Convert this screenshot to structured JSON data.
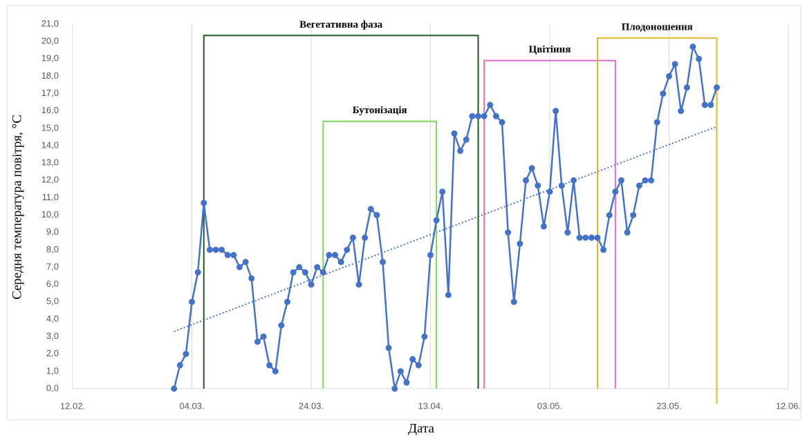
{
  "chart_data": {
    "type": "line",
    "xlabel": "Дата",
    "ylabel": "Середня температура повітря, °С",
    "x": [
      "01.03.",
      "02.03.",
      "03.03.",
      "04.03.",
      "05.03.",
      "06.03.",
      "07.03.",
      "08.03.",
      "09.03.",
      "10.03.",
      "11.03.",
      "12.03.",
      "13.03.",
      "14.03.",
      "15.03.",
      "16.03.",
      "17.03.",
      "18.03.",
      "19.03.",
      "20.03.",
      "21.03.",
      "22.03.",
      "23.03.",
      "24.03.",
      "25.03.",
      "26.03.",
      "27.03.",
      "28.03.",
      "29.03.",
      "30.03.",
      "31.03.",
      "01.04.",
      "02.04.",
      "03.04.",
      "04.04.",
      "05.04.",
      "06.04.",
      "07.04.",
      "08.04.",
      "09.04.",
      "10.04.",
      "11.04.",
      "12.04.",
      "13.04.",
      "14.04.",
      "15.04.",
      "16.04.",
      "17.04.",
      "18.04.",
      "19.04.",
      "20.04.",
      "21.04.",
      "22.04.",
      "23.04.",
      "24.04.",
      "25.04.",
      "26.04.",
      "27.04.",
      "28.04.",
      "29.04.",
      "30.04.",
      "01.05.",
      "02.05.",
      "03.05.",
      "04.05.",
      "05.05.",
      "06.05.",
      "07.05.",
      "08.05.",
      "09.05.",
      "10.05.",
      "11.05.",
      "12.05.",
      "13.05.",
      "14.05.",
      "15.05.",
      "16.05.",
      "17.05.",
      "18.05.",
      "19.05.",
      "20.05.",
      "21.05.",
      "22.05.",
      "23.05.",
      "24.05.",
      "25.05.",
      "26.05.",
      "27.05.",
      "28.05.",
      "29.05.",
      "30.05.",
      "31.05."
    ],
    "series": [
      {
        "color": "#4472c4",
        "values": [
          0.0,
          1.35,
          2.0,
          5.0,
          6.7,
          10.7,
          8.0,
          8.0,
          8.0,
          7.7,
          7.7,
          7.0,
          7.3,
          6.35,
          2.7,
          3.0,
          1.35,
          1.0,
          3.65,
          5.0,
          6.7,
          7.0,
          6.7,
          6.0,
          7.0,
          6.7,
          7.7,
          7.7,
          7.3,
          8.0,
          8.7,
          6.0,
          8.7,
          10.35,
          10.0,
          7.3,
          2.35,
          0.0,
          1.0,
          0.35,
          1.7,
          1.35,
          3.0,
          7.7,
          9.7,
          11.35,
          5.4,
          14.7,
          13.7,
          14.35,
          15.7,
          15.7,
          15.7,
          16.35,
          15.7,
          15.35,
          9.0,
          5.0,
          8.35,
          12.0,
          12.7,
          11.7,
          9.35,
          11.35,
          16.0,
          11.7,
          9.0,
          12.0,
          8.7,
          8.7,
          8.7,
          8.7,
          8.0,
          10.0,
          11.35,
          12.0,
          9.0,
          10.0,
          11.7,
          12.0,
          12.0,
          15.35,
          17.0,
          18.0,
          18.7,
          16.0,
          17.35,
          19.7,
          19.0,
          16.35,
          16.35,
          17.35
        ]
      }
    ],
    "trend": {
      "color": "#4472c4",
      "x": [
        "01.03.",
        "31.05."
      ],
      "values": [
        3.3,
        15.1
      ]
    },
    "annotations": [
      {
        "label": "Вегетативна фаза",
        "start": "06.03.",
        "end": "21.04.",
        "level": 20.35,
        "color": "#1f5a1f"
      },
      {
        "label": "Бутонізація",
        "start": "26.03.",
        "end": "14.04.",
        "level": 15.4,
        "color": "#7fd65a"
      },
      {
        "label": "Цвітіння",
        "start": "22.04.",
        "end": "14.05.",
        "level": 18.9,
        "color": "#e36ccc"
      },
      {
        "label": "Плодоношення",
        "start": "11.05.",
        "end": "31.05.",
        "level": 20.2,
        "color": "#e2b52a"
      }
    ],
    "xlim": [
      "12.02.",
      "12.06."
    ],
    "xticks": [
      "12.02.",
      "04.03.",
      "24.03.",
      "13.04.",
      "03.05.",
      "23.05.",
      "12.06."
    ],
    "ylim": [
      0,
      21
    ],
    "yticks": [
      {
        "value": 0,
        "label": "0,0"
      },
      {
        "value": 1,
        "label": "1,0"
      },
      {
        "value": 2,
        "label": "2,0"
      },
      {
        "value": 3,
        "label": "3,0"
      },
      {
        "value": 4,
        "label": "4,0"
      },
      {
        "value": 5,
        "label": "5,0"
      },
      {
        "value": 6,
        "label": "6,0"
      },
      {
        "value": 7,
        "label": "7,0"
      },
      {
        "value": 8,
        "label": "8,0"
      },
      {
        "value": 9,
        "label": "9,0"
      },
      {
        "value": 10,
        "label": "10,0"
      },
      {
        "value": 11,
        "label": "11,0"
      },
      {
        "value": 12,
        "label": "12,0"
      },
      {
        "value": 13,
        "label": "13,0"
      },
      {
        "value": 14,
        "label": "14,0"
      },
      {
        "value": 15,
        "label": "15,0"
      },
      {
        "value": 16,
        "label": "16,0"
      },
      {
        "value": 17,
        "label": "17,0"
      },
      {
        "value": 18,
        "label": "18,0"
      },
      {
        "value": 19,
        "label": "19,0"
      },
      {
        "value": 20,
        "label": "20,0"
      },
      {
        "value": 21,
        "label": "21,0"
      }
    ],
    "xgrid": true
  }
}
